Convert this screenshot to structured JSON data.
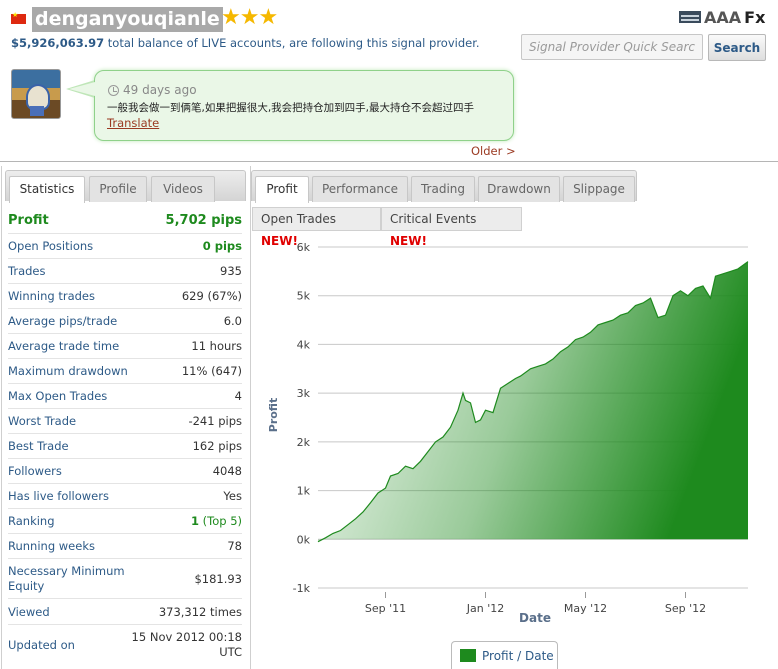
{
  "header": {
    "username": "denganyouqianle",
    "stars": "★★★",
    "balance_amount": "$5,926,063.97",
    "balance_text": " total balance of LIVE accounts, are following this signal provider.",
    "logo_prefix": "AAA",
    "logo_suffix": "Fx",
    "search_placeholder": "Signal Provider Quick Search",
    "search_button": "Search"
  },
  "message": {
    "time_ago": "49 days ago",
    "text": "一般我会做一到俩笔,如果把握很大,我会把持仓加到四手,最大持仓不会超过四手",
    "translate": "Translate",
    "older": "Older >"
  },
  "left_tabs": [
    "Statistics",
    "Profile",
    "Videos"
  ],
  "stats": [
    {
      "label": "Profit",
      "value": "5,702 pips"
    },
    {
      "label": "Open Positions",
      "value": "0 pips"
    },
    {
      "label": "Trades",
      "value": "935"
    },
    {
      "label": "Winning trades",
      "value": "629 (67%)"
    },
    {
      "label": "Average pips/trade",
      "value": "6.0"
    },
    {
      "label": "Average trade time",
      "value": "11 hours"
    },
    {
      "label": "Maximum drawdown",
      "value": "11% (647)"
    },
    {
      "label": "Max Open Trades",
      "value": "4"
    },
    {
      "label": "Worst Trade",
      "value": "-241 pips"
    },
    {
      "label": "Best Trade",
      "value": "162 pips"
    },
    {
      "label": "Followers",
      "value": "4048"
    },
    {
      "label": "Has live followers",
      "value": "Yes"
    },
    {
      "label": "Ranking",
      "value": "1",
      "value_extra": " (Top 5)"
    },
    {
      "label": "Running weeks",
      "value": "78"
    },
    {
      "label": "Necessary Minimum Equity",
      "value": "$181.93"
    },
    {
      "label": "Viewed",
      "value": "373,312 times"
    },
    {
      "label": "Updated on",
      "value": "15 Nov 2012 00:18 UTC"
    }
  ],
  "right_tabs": [
    "Profit",
    "Performance",
    "Trading",
    "Drawdown",
    "Slippage"
  ],
  "sub_tabs": [
    {
      "label": "Open Trades ",
      "badge": "NEW!"
    },
    {
      "label": "Critical Events ",
      "badge": "NEW!"
    }
  ],
  "chart_data": {
    "type": "area",
    "xlabel": "Date",
    "ylabel": "Profit",
    "ylim": [
      -1000,
      6000
    ],
    "yticks": [
      -1000,
      0,
      1000,
      2000,
      3000,
      4000,
      5000,
      6000
    ],
    "ytick_labels": [
      "-1k",
      "0k",
      "1k",
      "2k",
      "3k",
      "4k",
      "5k",
      "6k"
    ],
    "xticks": [
      "Sep '11",
      "Jan '12",
      "May '12",
      "Sep '12"
    ],
    "xtick_month_index": [
      8,
      12,
      16,
      20
    ],
    "x_start_month_index": 5.3,
    "x_end_month_index": 22.5,
    "legend": "Profit / Date",
    "color": "#1e8a1e",
    "series": [
      {
        "x": [
          5.3,
          5.6,
          5.9,
          6.2,
          6.5,
          6.8,
          7.1,
          7.4,
          7.7,
          8.0,
          8.2,
          8.5,
          8.8,
          9.1,
          9.4,
          9.7,
          10.0,
          10.3,
          10.6,
          10.9,
          11.1,
          11.2,
          11.4,
          11.6,
          11.8,
          12.0,
          12.3,
          12.6,
          12.9,
          13.2,
          13.4,
          13.8,
          14.1,
          14.4,
          14.7,
          15.0,
          15.3,
          15.6,
          15.9,
          16.2,
          16.5,
          16.8,
          17.1,
          17.4,
          17.7,
          18.0,
          18.3,
          18.6,
          18.9,
          19.2,
          19.5,
          19.8,
          20.1,
          20.4,
          20.7,
          21.0,
          21.2,
          21.5,
          21.8,
          22.1,
          22.5
        ],
        "y": [
          -50,
          30,
          120,
          180,
          300,
          420,
          560,
          750,
          950,
          1050,
          1300,
          1350,
          1500,
          1450,
          1600,
          1800,
          2000,
          2100,
          2300,
          2650,
          3000,
          2850,
          2800,
          2400,
          2450,
          2650,
          2600,
          3100,
          3200,
          3300,
          3350,
          3500,
          3550,
          3600,
          3700,
          3850,
          3950,
          4100,
          4150,
          4250,
          4400,
          4450,
          4500,
          4600,
          4650,
          4800,
          4850,
          4950,
          4550,
          4600,
          5000,
          5100,
          5000,
          5150,
          5200,
          4950,
          5400,
          5450,
          5500,
          5550,
          5700
        ]
      }
    ]
  }
}
